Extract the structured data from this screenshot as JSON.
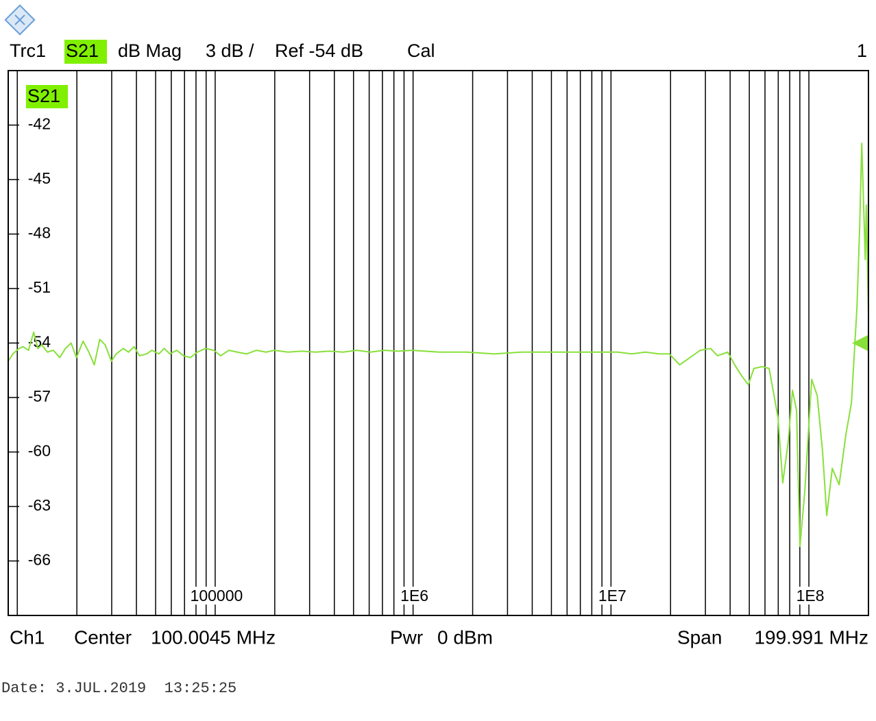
{
  "chart_data": {
    "type": "line",
    "header": {
      "trace": "Trc1",
      "format": "dB Mag",
      "scale": "3 dB /",
      "ref": "Ref -54 dB",
      "status": "Cal",
      "window": "1"
    },
    "footer": {
      "channel": "Ch1",
      "center_label": "Center",
      "center": "100.0045 MHz",
      "power_label": "Pwr",
      "power": "0 dBm",
      "span_label": "Span",
      "span": "199.991 MHz"
    },
    "date": "Date: 3.JUL.2019  13:25:25",
    "log_x": true,
    "label_color": "#80f000",
    "xlim": [
      9000,
      200000000
    ],
    "ylim": [
      -69,
      -39
    ],
    "xticks": [
      100000,
      {
        "value": 1000000,
        "label": "1E6"
      },
      {
        "value": 10000000,
        "label": "1E7"
      },
      {
        "value": 100000000,
        "label": "1E8"
      }
    ],
    "xgrid": [
      10000,
      20000,
      30000,
      40000,
      50000,
      60000,
      70000,
      80000,
      90000,
      200000,
      300000,
      400000,
      500000,
      600000,
      700000,
      800000,
      900000,
      2000000,
      3000000,
      4000000,
      5000000,
      6000000,
      7000000,
      8000000,
      9000000,
      20000000,
      30000000,
      40000000,
      50000000,
      60000000,
      70000000,
      80000000,
      90000000,
      200000000
    ],
    "yticks": [
      -42,
      -45,
      -48,
      -51,
      -54,
      -57,
      -60,
      -63,
      -66
    ],
    "ref_marker": -54,
    "x": [
      9000,
      9500,
      10200,
      10700,
      11400,
      12100,
      12700,
      13300,
      14200,
      15200,
      16400,
      17500,
      18700,
      19900,
      21500,
      23000,
      24500,
      26100,
      27800,
      29900,
      31600,
      34300,
      36500,
      38900,
      41500,
      45000,
      47900,
      51900,
      55300,
      59000,
      63900,
      69200,
      75000,
      81200,
      89400,
      98400,
      106600,
      117300,
      129200,
      144400,
      161600,
      180700,
      199000,
      233300,
      273800,
      321300,
      376900,
      442400,
      519000,
      609000,
      714700,
      838700,
      984200,
      1355000,
      1866000,
      2570000,
      3538000,
      4870000,
      6700000,
      9230000,
      10830000,
      12710000,
      14920000,
      17500000,
      19730000,
      22240000,
      25070000,
      28260000,
      31860000,
      34530000,
      38920000,
      42170000,
      45700000,
      49430000,
      52740000,
      58070000,
      62950000,
      69820000,
      73780000,
      78700000,
      82600000,
      86600000,
      90100000,
      95300000,
      103300000,
      110200000,
      117300000,
      123100000,
      131300000,
      142200000,
      154000000,
      164100000,
      175000000,
      180700000,
      185000000,
      192700000,
      195000000,
      200000000
    ],
    "series": [
      {
        "name": "S21",
        "color": "#88e03a",
        "values": [
          -55.0,
          -54.6,
          -54.3,
          -54.2,
          -54.4,
          -53.4,
          -54.3,
          -54.1,
          -54.5,
          -54.4,
          -54.8,
          -54.3,
          -54.0,
          -54.8,
          -53.9,
          -54.5,
          -55.2,
          -53.8,
          -54.1,
          -55.0,
          -54.6,
          -54.3,
          -54.5,
          -54.2,
          -54.7,
          -54.6,
          -54.4,
          -54.6,
          -54.3,
          -54.6,
          -54.4,
          -54.7,
          -54.8,
          -54.5,
          -54.3,
          -54.4,
          -54.7,
          -54.4,
          -54.5,
          -54.6,
          -54.4,
          -54.5,
          -54.4,
          -54.5,
          -54.45,
          -54.5,
          -54.45,
          -54.5,
          -54.4,
          -54.5,
          -54.4,
          -54.45,
          -54.4,
          -54.5,
          -54.5,
          -54.6,
          -54.5,
          -54.5,
          -54.5,
          -54.5,
          -54.5,
          -54.6,
          -54.5,
          -54.6,
          -54.6,
          -55.2,
          -54.8,
          -54.4,
          -54.3,
          -54.7,
          -54.5,
          -55.2,
          -55.8,
          -56.3,
          -55.4,
          -55.3,
          -55.4,
          -58.1,
          -61.7,
          -59.4,
          -56.6,
          -57.7,
          -65.2,
          -62.2,
          -56.0,
          -56.9,
          -60.0,
          -63.5,
          -60.9,
          -61.8,
          -59.0,
          -57.3,
          -52.0,
          -47.5,
          -43.0,
          -49.4,
          -46.4,
          -52.4
        ]
      }
    ]
  }
}
